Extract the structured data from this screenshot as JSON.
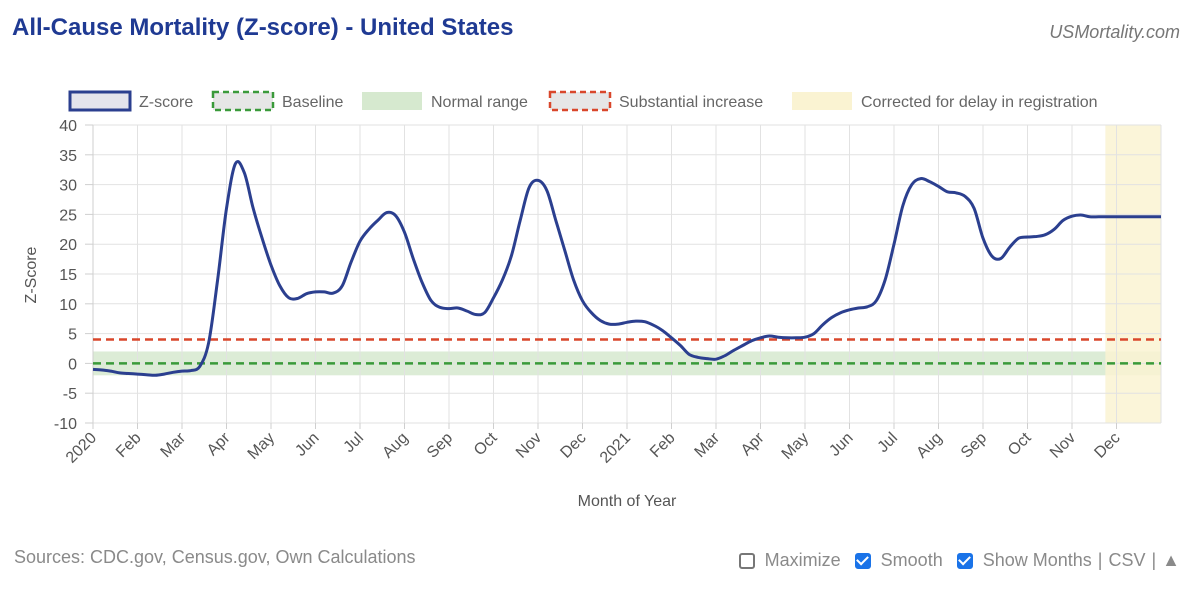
{
  "header": {
    "title": "All-Cause Mortality (Z-score) - United States",
    "brand": "USMortality.com"
  },
  "footer": {
    "sources": "Sources: CDC.gov, Census.gov, Own Calculations",
    "maximize_label": "Maximize",
    "maximize_checked": false,
    "smooth_label": "Smooth",
    "smooth_checked": true,
    "show_months_label": "Show Months",
    "show_months_checked": true,
    "csv_label": "CSV",
    "separator": "|",
    "up_arrow": "▲"
  },
  "chart_data": {
    "type": "line",
    "title": "All-Cause Mortality (Z-score) - United States",
    "xlabel": "Month of Year",
    "ylabel": "Z-Score",
    "ylim": [
      -10,
      40
    ],
    "yticks": [
      -10,
      -5,
      0,
      5,
      10,
      15,
      20,
      25,
      30,
      35,
      40
    ],
    "xtick_labels": [
      "2020",
      "Feb",
      "Mar",
      "Apr",
      "May",
      "Jun",
      "Jul",
      "Aug",
      "Sep",
      "Oct",
      "Nov",
      "Dec",
      "2021",
      "Feb",
      "Mar",
      "Apr",
      "May",
      "Jun",
      "Jul",
      "Aug",
      "Sep",
      "Oct",
      "Nov",
      "Dec"
    ],
    "grid": true,
    "legend_position": "top",
    "legend": [
      {
        "label": "Z-score",
        "style": "line",
        "color": "#2b3f8f"
      },
      {
        "label": "Baseline",
        "style": "dashed",
        "color": "#3a9a3a"
      },
      {
        "label": "Normal range",
        "style": "band",
        "color": "#d6e9cf"
      },
      {
        "label": "Substantial increase",
        "style": "dashed",
        "color": "#d9472b"
      },
      {
        "label": "Corrected for delay in registration",
        "style": "band",
        "color": "#faf3d2"
      }
    ],
    "series": [
      {
        "name": "Z-score",
        "color": "#2b3f8f",
        "x": [
          0,
          0.2,
          0.4,
          0.6,
          0.8,
          1.0,
          1.2,
          1.4,
          1.6,
          1.8,
          2.0,
          2.2,
          2.4,
          2.6,
          2.8,
          3.0,
          3.2,
          3.4,
          3.6,
          3.8,
          4.0,
          4.2,
          4.4,
          4.6,
          4.8,
          5.0,
          5.2,
          5.4,
          5.6,
          5.8,
          6.0,
          6.2,
          6.4,
          6.6,
          6.8,
          7.0,
          7.2,
          7.4,
          7.6,
          7.8,
          8.0,
          8.2,
          8.4,
          8.6,
          8.8,
          9.0,
          9.2,
          9.4,
          9.6,
          9.8,
          10.0,
          10.2,
          10.4,
          10.6,
          10.8,
          11.0,
          11.2,
          11.4,
          11.6,
          11.8,
          12.0,
          12.2,
          12.4,
          12.6,
          12.8,
          13.0,
          13.2,
          13.4,
          13.6,
          13.8,
          14.0,
          14.2,
          14.4,
          14.6,
          14.8,
          15.0,
          15.2,
          15.4,
          15.6,
          15.8,
          16.0,
          16.2,
          16.4,
          16.6,
          16.8,
          17.0,
          17.2,
          17.4,
          17.6,
          17.8,
          18.0,
          18.2,
          18.4,
          18.6,
          18.8,
          19.0,
          19.2,
          19.4,
          19.6,
          19.8,
          20.0,
          20.2,
          20.4,
          20.6,
          20.8,
          21.0,
          21.2,
          21.4,
          21.6,
          21.8,
          22.0,
          22.2,
          22.4,
          22.6,
          22.8,
          23.0,
          23.2,
          23.4,
          23.6,
          23.8,
          24.0
        ],
        "values": [
          -1.0,
          -1.1,
          -1.3,
          -1.6,
          -1.7,
          -1.8,
          -1.9,
          -2.0,
          -1.8,
          -1.5,
          -1.3,
          -1.2,
          -0.5,
          3.5,
          14.0,
          26.0,
          33.5,
          32.0,
          26.0,
          21.0,
          16.5,
          13.0,
          11.0,
          10.9,
          11.7,
          12.0,
          12.0,
          11.8,
          13.0,
          17.0,
          20.5,
          22.5,
          24.0,
          25.3,
          24.8,
          22.0,
          17.5,
          13.5,
          10.5,
          9.4,
          9.2,
          9.3,
          8.8,
          8.2,
          8.5,
          11.0,
          14.0,
          18.0,
          24.0,
          29.5,
          30.7,
          29.0,
          24.0,
          19.0,
          14.0,
          10.5,
          8.5,
          7.2,
          6.6,
          6.6,
          6.9,
          7.1,
          7.0,
          6.4,
          5.5,
          4.3,
          3.0,
          1.5,
          1.0,
          0.8,
          0.7,
          1.3,
          2.2,
          3.0,
          3.8,
          4.3,
          4.6,
          4.4,
          4.3,
          4.3,
          4.4,
          5.0,
          6.5,
          7.7,
          8.5,
          9.0,
          9.3,
          9.5,
          10.5,
          14.0,
          20.0,
          26.5,
          30.0,
          31.0,
          30.5,
          29.7,
          28.8,
          28.6,
          28.0,
          26.0,
          21.0,
          18.0,
          17.6,
          19.5,
          21.0,
          21.2,
          21.3,
          21.6,
          22.5,
          24.0,
          24.7,
          24.9,
          24.6,
          24.6,
          24.6,
          24.6,
          24.6,
          24.6,
          24.6,
          24.6,
          24.6
        ]
      }
    ],
    "baseline": 0,
    "normal_range": [
      -2,
      2
    ],
    "substantial_increase": 4,
    "corrected_delay_start_x": 22.75,
    "colors": {
      "line": "#2b3f8f",
      "baseline": "#3a9a3a",
      "normal_range": "#d6e9cf",
      "substantial": "#d9472b",
      "delay_band": "#faf3d2",
      "grid": "#e2e2e2",
      "axis_text": "#555555"
    }
  }
}
